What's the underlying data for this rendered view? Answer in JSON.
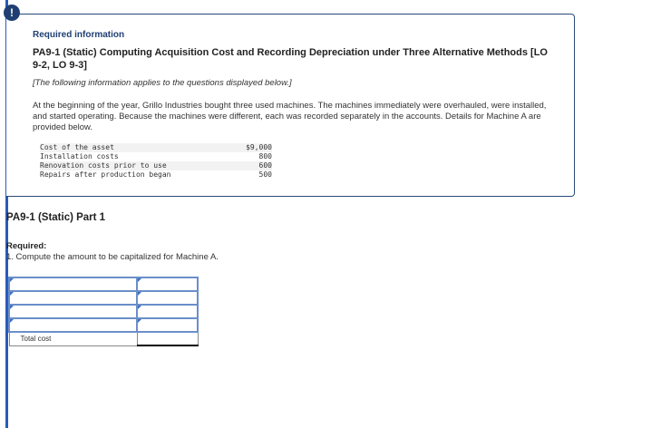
{
  "alert_icon": "exclamation-icon",
  "required_info_label": "Required information",
  "title": "PA9-1 (Static) Computing Acquisition Cost and Recording Depreciation under Three Alternative Methods [LO 9-2, LO 9-3]",
  "note": "[The following information applies to the questions displayed below.]",
  "paragraph": "At the beginning of the year, Grillo Industries bought three used machines. The machines immediately were overhauled, were installed, and started operating. Because the machines were different, each was recorded separately in the accounts. Details for Machine A are provided below.",
  "costs": [
    {
      "label": "Cost of the asset",
      "value": "$9,000"
    },
    {
      "label": "Installation costs",
      "value": "800"
    },
    {
      "label": "Renovation costs prior to use",
      "value": "600"
    },
    {
      "label": "Repairs after production began",
      "value": "500"
    }
  ],
  "part_title": "PA9-1 (Static) Part 1",
  "required_label": "Required:",
  "question": "1. Compute the amount to be capitalized for Machine A.",
  "answer_table": {
    "rows": [
      {
        "label": "",
        "value": ""
      },
      {
        "label": "",
        "value": ""
      },
      {
        "label": "",
        "value": ""
      },
      {
        "label": "",
        "value": ""
      }
    ],
    "total_label": "Total cost",
    "total_value": ""
  }
}
